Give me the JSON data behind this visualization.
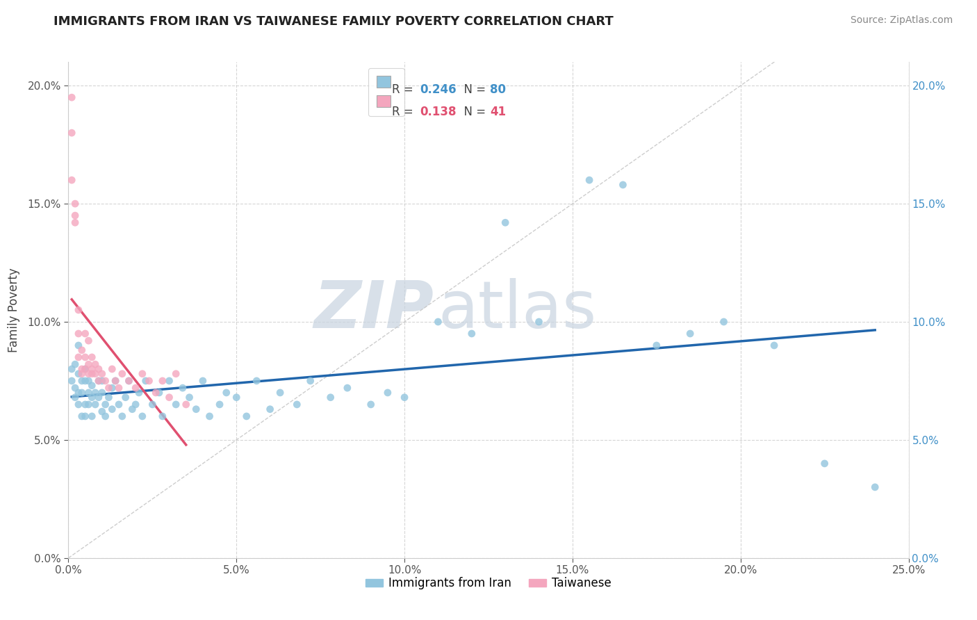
{
  "title": "IMMIGRANTS FROM IRAN VS TAIWANESE FAMILY POVERTY CORRELATION CHART",
  "source": "Source: ZipAtlas.com",
  "ylabel": "Family Poverty",
  "xlim": [
    0.0,
    0.25
  ],
  "ylim": [
    0.0,
    0.21
  ],
  "x_ticks": [
    0.0,
    0.05,
    0.1,
    0.15,
    0.2,
    0.25
  ],
  "y_ticks": [
    0.0,
    0.05,
    0.1,
    0.15,
    0.2
  ],
  "legend_r1_val": "0.246",
  "legend_n1_val": "80",
  "legend_r2_val": "0.138",
  "legend_n2_val": "41",
  "color_blue": "#92c5de",
  "color_pink": "#f4a6be",
  "color_line_blue": "#2166ac",
  "color_line_pink": "#e05070",
  "color_right_axis": "#4090c8",
  "color_watermark": "#ccd8e8",
  "iran_x": [
    0.001,
    0.001,
    0.002,
    0.002,
    0.002,
    0.003,
    0.003,
    0.003,
    0.003,
    0.004,
    0.004,
    0.004,
    0.005,
    0.005,
    0.005,
    0.005,
    0.006,
    0.006,
    0.006,
    0.007,
    0.007,
    0.007,
    0.008,
    0.008,
    0.009,
    0.009,
    0.01,
    0.01,
    0.01,
    0.011,
    0.011,
    0.012,
    0.013,
    0.013,
    0.014,
    0.015,
    0.016,
    0.017,
    0.018,
    0.019,
    0.02,
    0.021,
    0.022,
    0.023,
    0.025,
    0.027,
    0.028,
    0.03,
    0.032,
    0.034,
    0.036,
    0.038,
    0.04,
    0.042,
    0.045,
    0.047,
    0.05,
    0.053,
    0.056,
    0.06,
    0.063,
    0.068,
    0.072,
    0.078,
    0.083,
    0.09,
    0.095,
    0.1,
    0.11,
    0.12,
    0.13,
    0.14,
    0.155,
    0.165,
    0.175,
    0.185,
    0.195,
    0.21,
    0.225,
    0.24
  ],
  "iran_y": [
    0.08,
    0.075,
    0.082,
    0.072,
    0.068,
    0.078,
    0.065,
    0.07,
    0.09,
    0.06,
    0.075,
    0.07,
    0.065,
    0.06,
    0.075,
    0.08,
    0.07,
    0.065,
    0.075,
    0.068,
    0.073,
    0.06,
    0.065,
    0.07,
    0.068,
    0.075,
    0.062,
    0.07,
    0.075,
    0.065,
    0.06,
    0.068,
    0.072,
    0.063,
    0.075,
    0.065,
    0.06,
    0.068,
    0.075,
    0.063,
    0.065,
    0.07,
    0.06,
    0.075,
    0.065,
    0.07,
    0.06,
    0.075,
    0.065,
    0.072,
    0.068,
    0.063,
    0.075,
    0.06,
    0.065,
    0.07,
    0.068,
    0.06,
    0.075,
    0.063,
    0.07,
    0.065,
    0.075,
    0.068,
    0.072,
    0.065,
    0.07,
    0.068,
    0.1,
    0.095,
    0.142,
    0.1,
    0.16,
    0.158,
    0.09,
    0.095,
    0.1,
    0.09,
    0.04,
    0.03
  ],
  "taiwan_x": [
    0.001,
    0.001,
    0.001,
    0.002,
    0.002,
    0.002,
    0.003,
    0.003,
    0.003,
    0.004,
    0.004,
    0.004,
    0.005,
    0.005,
    0.005,
    0.006,
    0.006,
    0.006,
    0.007,
    0.007,
    0.007,
    0.008,
    0.008,
    0.009,
    0.009,
    0.01,
    0.011,
    0.012,
    0.013,
    0.014,
    0.015,
    0.016,
    0.018,
    0.02,
    0.022,
    0.024,
    0.026,
    0.028,
    0.03,
    0.032,
    0.035
  ],
  "taiwan_y": [
    0.195,
    0.18,
    0.16,
    0.15,
    0.145,
    0.142,
    0.105,
    0.095,
    0.085,
    0.088,
    0.08,
    0.078,
    0.095,
    0.085,
    0.08,
    0.092,
    0.082,
    0.078,
    0.08,
    0.085,
    0.078,
    0.078,
    0.082,
    0.08,
    0.075,
    0.078,
    0.075,
    0.072,
    0.08,
    0.075,
    0.072,
    0.078,
    0.075,
    0.072,
    0.078,
    0.075,
    0.07,
    0.075,
    0.068,
    0.078,
    0.065
  ],
  "iran_line_x": [
    0.001,
    0.24
  ],
  "taiwan_line_x": [
    0.001,
    0.035
  ]
}
